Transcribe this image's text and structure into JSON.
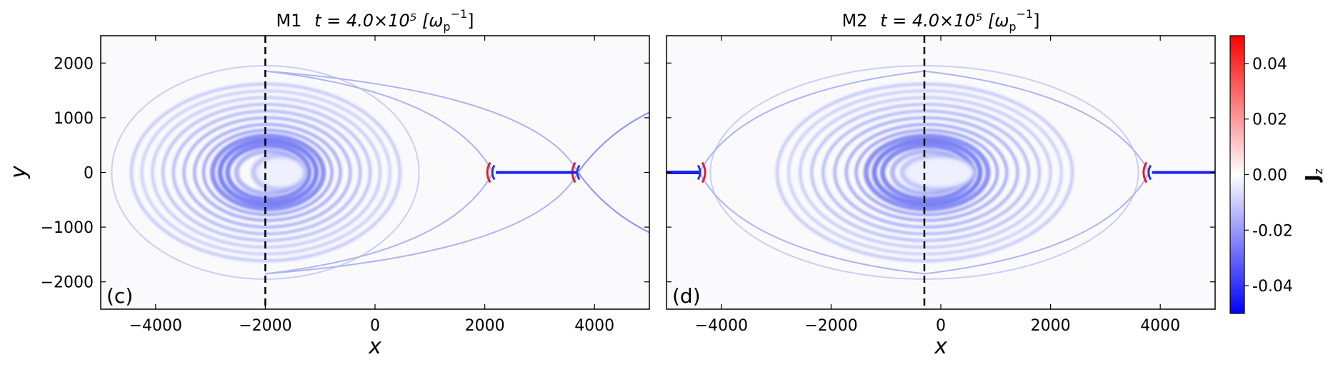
{
  "chart_data": {
    "type": "heatmap",
    "quantity": "J",
    "quantity_subscript": "z",
    "colorbar": {
      "range": [
        -0.05,
        0.05
      ],
      "ticks": [
        -0.04,
        -0.02,
        0.0,
        0.02,
        0.04
      ],
      "tick_labels": [
        "-0.04",
        "-0.02",
        "0.00",
        "0.02",
        "0.04"
      ],
      "colormap": [
        "#0000ff",
        "#ffffff",
        "#ff0000"
      ]
    },
    "panels": [
      {
        "id": "M1",
        "title_prefix": "M1",
        "title_time": "t = 4.0×10⁵ [ω",
        "title_sub": "p",
        "title_sup": "−1",
        "title_end": "]",
        "tag": "(c)",
        "xlabel": "x",
        "ylabel": "y",
        "xlim": [
          -5000,
          5000
        ],
        "ylim": [
          -2500,
          2500
        ],
        "xticks": [
          -4000,
          -2000,
          0,
          2000,
          4000
        ],
        "xtick_labels": [
          "−4000",
          "−2000",
          "0",
          "2000",
          "4000"
        ],
        "yticks": [
          -2000,
          -1000,
          0,
          1000,
          2000
        ],
        "ytick_labels": [
          "−2000",
          "−1000",
          "0",
          "1000",
          "2000"
        ],
        "dashed_line_x": -2000,
        "plasmoid": {
          "cx": -2000,
          "rx": 2800,
          "ry": 1950
        },
        "xpoints": [
          2150,
          3700
        ],
        "current_sheet": [
          2200,
          3700
        ],
        "right_open": 4200
      },
      {
        "id": "M2",
        "title_prefix": "M2",
        "title_time": "t = 4.0×10⁵ [ω",
        "title_sub": "p",
        "title_sup": "−1",
        "title_end": "]",
        "tag": "(d)",
        "xlabel": "x",
        "ylabel": "",
        "xlim": [
          -5000,
          5000
        ],
        "ylim": [
          -2500,
          2500
        ],
        "xticks": [
          -4000,
          -2000,
          0,
          2000,
          4000
        ],
        "xtick_labels": [
          "−4000",
          "−2000",
          "0",
          "2000",
          "4000"
        ],
        "yticks": [],
        "ytick_labels": [],
        "dashed_line_x": -300,
        "plasmoid": {
          "cx": -300,
          "rx": 3900,
          "ry": 1950
        },
        "xpoints": [
          -4400,
          3800
        ],
        "current_sheet": [
          3850,
          5000
        ],
        "left_sheet": [
          -5000,
          -4400
        ]
      }
    ]
  }
}
